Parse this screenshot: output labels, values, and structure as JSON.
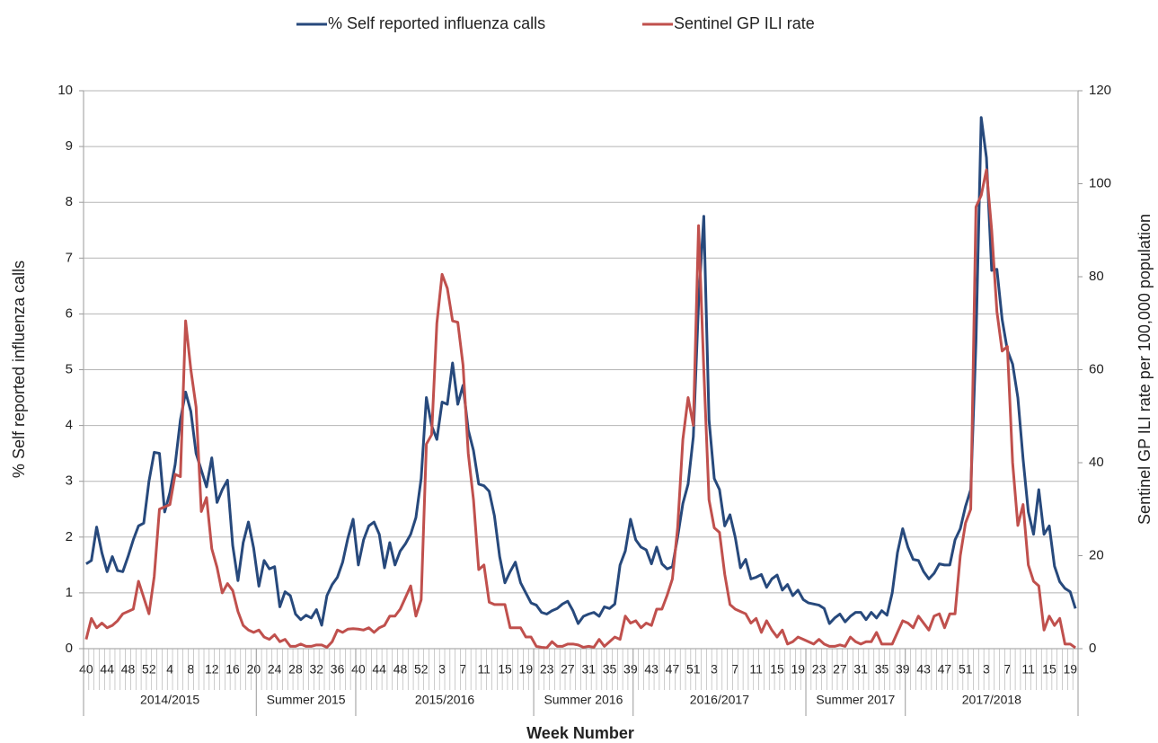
{
  "chart_data": {
    "type": "line",
    "xlabel": "Week Number",
    "ylabel": "% Self reported influenza calls",
    "y2label": "Sentinel GP ILI rate per 100,000 population",
    "ylim": [
      0,
      10
    ],
    "yticks": [
      0,
      1,
      2,
      3,
      4,
      5,
      6,
      7,
      8,
      9,
      10
    ],
    "y2lim": [
      0,
      120
    ],
    "y2ticks": [
      0,
      20,
      40,
      60,
      80,
      100,
      120
    ],
    "grid": true,
    "legend": "top",
    "groups": [
      {
        "label": "2014/2015",
        "categories": [
          40,
          null,
          null,
          null,
          44,
          null,
          null,
          null,
          48,
          null,
          null,
          null,
          52,
          null,
          null,
          null,
          4,
          null,
          null,
          null,
          8,
          null,
          null,
          null,
          12,
          null,
          null,
          null,
          16,
          null,
          null,
          null,
          20
        ]
      },
      {
        "label": "Summer 2015",
        "categories": [
          null,
          null,
          null,
          24,
          null,
          null,
          null,
          28,
          null,
          null,
          null,
          32,
          null,
          null,
          null,
          36,
          null,
          null,
          null
        ]
      },
      {
        "label": "2015/2016",
        "categories": [
          40,
          null,
          null,
          null,
          44,
          null,
          null,
          null,
          48,
          null,
          null,
          null,
          52,
          null,
          null,
          null,
          3,
          null,
          null,
          null,
          7,
          null,
          null,
          null,
          11,
          null,
          null,
          null,
          15,
          null,
          null,
          null,
          19,
          null
        ]
      },
      {
        "label": "Summer 2016",
        "categories": [
          null,
          null,
          23,
          null,
          null,
          null,
          27,
          null,
          null,
          null,
          31,
          null,
          null,
          null,
          35,
          null,
          null,
          null,
          39
        ]
      },
      {
        "label": "2016/2017",
        "categories": [
          null,
          null,
          null,
          43,
          null,
          null,
          null,
          47,
          null,
          null,
          null,
          51,
          null,
          null,
          null,
          3,
          null,
          null,
          null,
          7,
          null,
          null,
          null,
          11,
          null,
          null,
          null,
          15,
          null,
          null,
          null,
          19,
          null
        ]
      },
      {
        "label": "Summer 2017",
        "categories": [
          null,
          null,
          23,
          null,
          null,
          null,
          27,
          null,
          null,
          null,
          31,
          null,
          null,
          null,
          35,
          null,
          null,
          null,
          39
        ]
      },
      {
        "label": "2017/2018",
        "categories": [
          null,
          null,
          null,
          43,
          null,
          null,
          null,
          47,
          null,
          null,
          null,
          51,
          null,
          null,
          null,
          3,
          null,
          null,
          null,
          7,
          null,
          null,
          null,
          11,
          null,
          null,
          null,
          15,
          null,
          null,
          null,
          19,
          null
        ]
      }
    ],
    "series": [
      {
        "name": "% Self reported influenza calls",
        "color": "#27497c",
        "values": [
          1.52,
          1.58,
          2.18,
          1.72,
          1.38,
          1.65,
          1.4,
          1.38,
          1.65,
          1.95,
          2.2,
          2.25,
          3.0,
          3.52,
          3.5,
          2.45,
          2.8,
          3.3,
          4.1,
          4.6,
          4.25,
          3.5,
          3.2,
          2.9,
          3.42,
          2.62,
          2.85,
          3.02,
          1.85,
          1.22,
          1.9,
          2.27,
          1.8,
          1.12,
          1.58,
          1.43,
          1.47,
          0.75,
          1.02,
          0.95,
          0.62,
          0.52,
          0.6,
          0.55,
          0.7,
          0.42,
          0.95,
          1.15,
          1.28,
          1.55,
          1.98,
          2.32,
          1.5,
          1.95,
          2.2,
          2.27,
          2.05,
          1.45,
          1.9,
          1.5,
          1.75,
          1.88,
          2.05,
          2.35,
          3.05,
          4.5,
          4.0,
          3.75,
          4.42,
          4.38,
          5.12,
          4.38,
          4.72,
          3.92,
          3.55,
          2.95,
          2.92,
          2.82,
          2.38,
          1.65,
          1.18,
          1.38,
          1.55,
          1.18,
          1.0,
          0.82,
          0.78,
          0.65,
          0.62,
          0.68,
          0.72,
          0.8,
          0.85,
          0.68,
          0.45,
          0.58,
          0.62,
          0.65,
          0.58,
          0.75,
          0.72,
          0.8,
          1.5,
          1.75,
          2.32,
          1.95,
          1.82,
          1.77,
          1.52,
          1.82,
          1.52,
          1.43,
          1.47,
          2.0,
          2.6,
          2.95,
          3.8,
          6.2,
          7.75,
          4.1,
          3.05,
          2.85,
          2.2,
          2.4,
          2.0,
          1.45,
          1.6,
          1.25,
          1.28,
          1.33,
          1.1,
          1.25,
          1.32,
          1.05,
          1.15,
          0.95,
          1.05,
          0.88,
          0.82,
          0.8,
          0.78,
          0.72,
          0.45,
          0.55,
          0.62,
          0.48,
          0.58,
          0.65,
          0.65,
          0.52,
          0.65,
          0.55,
          0.68,
          0.6,
          1.0,
          1.72,
          2.15,
          1.82,
          1.6,
          1.58,
          1.38,
          1.25,
          1.35,
          1.52,
          1.5,
          1.5,
          1.95,
          2.15,
          2.55,
          2.85,
          5.5,
          9.52,
          8.8,
          6.78,
          6.8,
          5.9,
          5.35,
          5.1,
          4.5,
          3.4,
          2.45,
          2.05,
          2.85,
          2.05,
          2.2,
          1.48,
          1.2,
          1.08,
          1.02,
          0.72
        ]
      },
      {
        "name": "Sentinel GP ILI rate",
        "color": "#c0504d",
        "axis": "y2",
        "values": [
          2,
          6.5,
          4.5,
          5.5,
          4.5,
          5,
          6,
          7.5,
          8,
          8.5,
          14.5,
          11,
          7.5,
          15.5,
          30,
          30.5,
          31,
          37.5,
          37,
          70.5,
          60,
          52,
          29.5,
          32.5,
          21.5,
          17.5,
          12,
          14,
          12.5,
          8,
          5,
          4,
          3.5,
          4,
          2.5,
          2,
          3,
          1.5,
          2,
          0.5,
          0.5,
          1,
          0.5,
          0.5,
          0.8,
          0.8,
          0.3,
          1.5,
          4,
          3.5,
          4.2,
          4.3,
          4.2,
          4,
          4.5,
          3.5,
          4.5,
          5,
          7,
          7,
          8.5,
          11,
          13.5,
          7,
          10.5,
          44,
          46,
          70,
          80.5,
          77.5,
          70.5,
          70.2,
          61,
          42,
          32,
          17,
          18,
          10,
          9.5,
          9.5,
          9.5,
          4.5,
          4.5,
          4.5,
          2.5,
          2.5,
          0.5,
          0.3,
          0.2,
          1.5,
          0.5,
          0.5,
          1,
          1,
          0.8,
          0.3,
          0.5,
          0.3,
          2,
          0.5,
          1.5,
          2.5,
          2,
          7,
          5.5,
          6,
          4.5,
          5.5,
          5,
          8.5,
          8.5,
          11.5,
          15,
          26,
          45,
          54,
          48,
          91,
          60,
          32,
          26,
          25,
          16,
          9.5,
          8.5,
          8,
          7.5,
          5.5,
          6.5,
          3.5,
          6,
          4,
          2.5,
          4,
          1,
          1.5,
          2.5,
          2,
          1.5,
          1,
          2,
          1,
          0.5,
          0.5,
          0.8,
          0.5,
          2.5,
          1.5,
          1,
          1.5,
          1.5,
          3.5,
          1,
          1,
          1,
          3.5,
          6,
          5.5,
          4.5,
          7,
          5.5,
          4,
          7,
          7.5,
          4.5,
          7.5,
          7.5,
          20,
          27,
          30,
          95,
          97.5,
          103,
          90,
          72.5,
          64,
          65,
          40,
          26.5,
          31,
          18,
          14.5,
          13.5,
          4,
          7,
          5,
          6.5,
          1,
          1,
          0.2
        ]
      }
    ]
  }
}
